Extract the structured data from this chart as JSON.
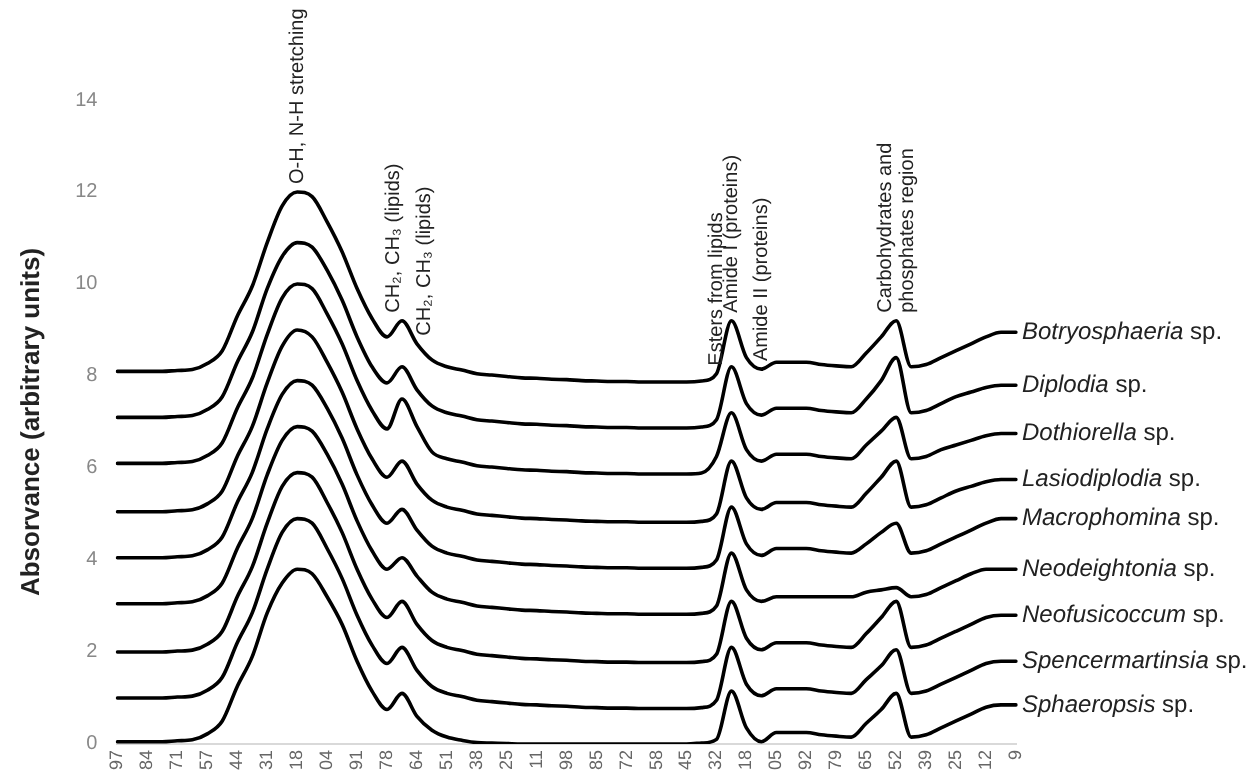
{
  "chart_data": {
    "type": "line",
    "ylabel": "Absorvance (arbitrary units)",
    "legend": false,
    "grid": false,
    "marker": "none",
    "line_style": "solid",
    "categories": [
      "97",
      null,
      "84",
      null,
      "71",
      null,
      "57",
      null,
      "44",
      null,
      "31",
      null,
      "18",
      null,
      "04",
      null,
      "91",
      null,
      "78",
      null,
      "64",
      null,
      "51",
      null,
      "38",
      null,
      "25",
      null,
      "11",
      null,
      "98",
      null,
      "85",
      null,
      "72",
      null,
      "58",
      null,
      "45",
      null,
      "32",
      null,
      "18",
      null,
      "05",
      null,
      "92",
      null,
      "79",
      null,
      "65",
      null,
      "52",
      null,
      "39",
      null,
      "25",
      null,
      "12",
      null,
      "9"
    ],
    "ylim": [
      0,
      14
    ],
    "yticks": [
      0,
      2,
      4,
      6,
      8,
      10,
      12,
      14
    ],
    "series": [
      {
        "name": "Botryosphaeria sp.",
        "color": "#000000",
        "values": [
          8.1,
          8.1,
          8.1,
          8.1,
          8.12,
          8.14,
          8.27,
          8.55,
          9.3,
          9.95,
          10.9,
          11.7,
          12.0,
          11.9,
          11.35,
          10.7,
          9.9,
          9.25,
          8.85,
          9.2,
          8.7,
          8.35,
          8.2,
          8.13,
          8.05,
          8.02,
          7.99,
          7.96,
          7.95,
          7.93,
          7.92,
          7.9,
          7.89,
          7.88,
          7.88,
          7.87,
          7.87,
          7.87,
          7.87,
          7.89,
          8.05,
          9.2,
          8.4,
          8.15,
          8.3,
          8.3,
          8.3,
          8.25,
          8.22,
          8.2,
          8.5,
          8.85,
          9.2,
          8.2,
          8.25,
          8.4,
          8.55,
          8.7,
          8.85,
          8.95,
          8.95
        ]
      },
      {
        "name": "Diplodia sp.",
        "color": "#000000",
        "values": [
          7.1,
          7.1,
          7.1,
          7.1,
          7.12,
          7.14,
          7.27,
          7.55,
          8.3,
          8.95,
          9.9,
          10.6,
          10.9,
          10.8,
          10.3,
          9.65,
          8.85,
          8.2,
          7.85,
          8.2,
          7.7,
          7.35,
          7.2,
          7.13,
          7.05,
          7.02,
          6.99,
          6.96,
          6.95,
          6.93,
          6.92,
          6.9,
          6.89,
          6.88,
          6.88,
          6.87,
          6.87,
          6.87,
          6.87,
          6.89,
          7.05,
          8.2,
          7.4,
          7.15,
          7.3,
          7.3,
          7.3,
          7.25,
          7.22,
          7.2,
          7.5,
          7.9,
          8.4,
          7.2,
          7.25,
          7.4,
          7.55,
          7.65,
          7.75,
          7.8,
          7.8
        ]
      },
      {
        "name": "Dothiorella sp.",
        "color": "#000000",
        "values": [
          6.1,
          6.1,
          6.1,
          6.1,
          6.12,
          6.14,
          6.27,
          6.55,
          7.3,
          7.95,
          8.9,
          9.7,
          10.0,
          9.9,
          9.35,
          8.7,
          7.9,
          7.25,
          6.85,
          7.5,
          6.9,
          6.35,
          6.2,
          6.13,
          6.05,
          6.02,
          5.99,
          5.96,
          5.95,
          5.93,
          5.92,
          5.9,
          5.89,
          5.88,
          5.88,
          5.87,
          5.87,
          5.87,
          5.87,
          5.89,
          6.25,
          7.2,
          6.4,
          6.15,
          6.3,
          6.3,
          6.3,
          6.25,
          6.22,
          6.2,
          6.5,
          6.8,
          7.1,
          6.2,
          6.25,
          6.4,
          6.5,
          6.6,
          6.7,
          6.75,
          6.75
        ]
      },
      {
        "name": "Lasiodiplodia sp.",
        "color": "#000000",
        "values": [
          5.05,
          5.05,
          5.05,
          5.05,
          5.07,
          5.09,
          5.22,
          5.5,
          6.25,
          6.9,
          7.85,
          8.65,
          9.0,
          8.85,
          8.3,
          7.65,
          6.85,
          6.2,
          5.8,
          6.15,
          5.65,
          5.3,
          5.15,
          5.08,
          5.0,
          4.97,
          4.94,
          4.91,
          4.9,
          4.88,
          4.87,
          4.85,
          4.84,
          4.83,
          4.83,
          4.82,
          4.82,
          4.82,
          4.82,
          4.84,
          5.0,
          6.15,
          5.35,
          5.1,
          5.25,
          5.25,
          5.25,
          5.2,
          5.17,
          5.15,
          5.45,
          5.8,
          6.15,
          5.15,
          5.2,
          5.35,
          5.5,
          5.6,
          5.7,
          5.75,
          5.75
        ]
      },
      {
        "name": "Macrophomina sp.",
        "color": "#000000",
        "values": [
          4.05,
          4.05,
          4.05,
          4.05,
          4.07,
          4.09,
          4.22,
          4.5,
          5.25,
          5.9,
          6.85,
          7.6,
          7.9,
          7.8,
          7.3,
          6.65,
          5.85,
          5.2,
          4.8,
          5.1,
          4.65,
          4.3,
          4.15,
          4.08,
          4.0,
          3.97,
          3.94,
          3.91,
          3.9,
          3.88,
          3.87,
          3.85,
          3.84,
          3.83,
          3.83,
          3.82,
          3.82,
          3.82,
          3.82,
          3.84,
          4.0,
          5.15,
          4.35,
          4.1,
          4.25,
          4.25,
          4.25,
          4.2,
          4.17,
          4.15,
          4.35,
          4.6,
          4.8,
          4.15,
          4.2,
          4.35,
          4.5,
          4.65,
          4.8,
          4.9,
          4.9
        ]
      },
      {
        "name": "Neodeightonia sp.",
        "color": "#000000",
        "values": [
          3.05,
          3.05,
          3.05,
          3.05,
          3.07,
          3.09,
          3.22,
          3.5,
          4.25,
          4.9,
          5.85,
          6.6,
          6.9,
          6.8,
          6.3,
          5.65,
          4.85,
          4.2,
          3.8,
          4.05,
          3.65,
          3.3,
          3.15,
          3.08,
          3.0,
          2.97,
          2.94,
          2.91,
          2.9,
          2.88,
          2.87,
          2.85,
          2.84,
          2.83,
          2.83,
          2.82,
          2.82,
          2.82,
          2.82,
          2.84,
          3.0,
          4.15,
          3.35,
          3.1,
          3.2,
          3.2,
          3.2,
          3.2,
          3.2,
          3.2,
          3.3,
          3.35,
          3.4,
          3.2,
          3.25,
          3.4,
          3.55,
          3.7,
          3.8,
          3.8,
          3.8
        ]
      },
      {
        "name": "Neofusicoccum sp.",
        "color": "#000000",
        "values": [
          2.0,
          2.0,
          2.0,
          2.0,
          2.02,
          2.04,
          2.17,
          2.45,
          3.2,
          3.85,
          4.8,
          5.6,
          5.9,
          5.8,
          5.25,
          4.6,
          3.8,
          3.15,
          2.75,
          3.1,
          2.6,
          2.25,
          2.1,
          2.03,
          1.95,
          1.92,
          1.89,
          1.86,
          1.85,
          1.83,
          1.82,
          1.8,
          1.79,
          1.78,
          1.78,
          1.77,
          1.77,
          1.77,
          1.77,
          1.79,
          1.95,
          3.1,
          2.3,
          2.05,
          2.2,
          2.2,
          2.2,
          2.15,
          2.12,
          2.1,
          2.4,
          2.75,
          3.1,
          2.1,
          2.15,
          2.3,
          2.45,
          2.6,
          2.75,
          2.8,
          2.8
        ]
      },
      {
        "name": "Spencermartinsia sp.",
        "color": "#000000",
        "values": [
          1.0,
          1.0,
          1.0,
          1.0,
          1.02,
          1.04,
          1.17,
          1.45,
          2.2,
          2.85,
          3.8,
          4.6,
          4.9,
          4.8,
          4.25,
          3.6,
          2.8,
          2.15,
          1.75,
          2.1,
          1.6,
          1.25,
          1.1,
          1.03,
          0.95,
          0.92,
          0.89,
          0.86,
          0.85,
          0.83,
          0.82,
          0.8,
          0.79,
          0.78,
          0.78,
          0.77,
          0.77,
          0.77,
          0.77,
          0.79,
          0.95,
          2.1,
          1.3,
          1.05,
          1.2,
          1.2,
          1.2,
          1.15,
          1.12,
          1.1,
          1.4,
          1.7,
          2.05,
          1.1,
          1.15,
          1.3,
          1.45,
          1.6,
          1.75,
          1.8,
          1.8
        ]
      },
      {
        "name": "Sphaeropsis sp.",
        "color": "#000000",
        "values": [
          0.05,
          0.05,
          0.05,
          0.05,
          0.07,
          0.09,
          0.22,
          0.5,
          1.25,
          1.9,
          2.85,
          3.5,
          3.8,
          3.7,
          3.2,
          2.6,
          1.8,
          1.15,
          0.75,
          1.1,
          0.6,
          0.3,
          0.15,
          0.08,
          0.03,
          0.02,
          0.01,
          0,
          0,
          0,
          0,
          0,
          0,
          0,
          0,
          0,
          0,
          0,
          0,
          0.02,
          0.1,
          1.15,
          0.35,
          0.05,
          0.25,
          0.25,
          0.25,
          0.2,
          0.17,
          0.15,
          0.45,
          0.75,
          1.1,
          0.15,
          0.2,
          0.35,
          0.5,
          0.65,
          0.8,
          0.85,
          0.85
        ]
      }
    ],
    "annotations": [
      "O-H, N-H stretching",
      "CH₂, CH₃ (lipids)",
      "CH₂, CH₃ (lipids)",
      "Esters from lipids",
      "Amide I (proteins)",
      "Amide II (proteins)",
      "Carbohydrates and\nphosphates region"
    ]
  }
}
